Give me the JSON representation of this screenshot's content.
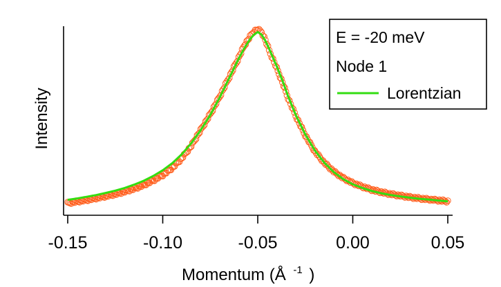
{
  "chart_data": {
    "type": "scatter",
    "xlabel_main": "Momentum (Å",
    "xlabel_sup": "-1",
    "xlabel_close": ")",
    "ylabel": "Intensity",
    "xlim": [
      -0.15,
      0.05
    ],
    "ylim": [
      0.0,
      1.0
    ],
    "x_ticks": [
      -0.15,
      -0.1,
      -0.05,
      0.0,
      0.05
    ],
    "x_tick_labels": [
      "-0.15",
      "-0.10",
      "-0.05",
      "0.00",
      "0.05"
    ],
    "y_ticks_shown": false,
    "grid": false,
    "legend_placement": "top-right",
    "annotations": [
      "E = -20 meV",
      "Node 1"
    ],
    "series": [
      {
        "name": "",
        "kind": "markers",
        "marker": "open-circle",
        "color": "#ff5c1a",
        "x": [
          -0.15,
          -0.145,
          -0.14,
          -0.135,
          -0.13,
          -0.125,
          -0.12,
          -0.115,
          -0.11,
          -0.105,
          -0.1,
          -0.095,
          -0.09,
          -0.085,
          -0.08,
          -0.075,
          -0.07,
          -0.065,
          -0.06,
          -0.057,
          -0.054,
          -0.052,
          -0.05,
          -0.048,
          -0.046,
          -0.044,
          -0.042,
          -0.04,
          -0.037,
          -0.034,
          -0.03,
          -0.025,
          -0.02,
          -0.015,
          -0.01,
          -0.005,
          0.0,
          0.005,
          0.01,
          0.015,
          0.02,
          0.025,
          0.03,
          0.035,
          0.04,
          0.045,
          0.05
        ],
        "y": [
          0.006,
          0.015,
          0.024,
          0.034,
          0.045,
          0.057,
          0.071,
          0.088,
          0.108,
          0.135,
          0.165,
          0.205,
          0.26,
          0.33,
          0.42,
          0.51,
          0.61,
          0.72,
          0.83,
          0.9,
          0.95,
          0.98,
          0.99,
          0.975,
          0.93,
          0.87,
          0.82,
          0.77,
          0.69,
          0.6,
          0.5,
          0.39,
          0.3,
          0.235,
          0.185,
          0.148,
          0.12,
          0.099,
          0.082,
          0.068,
          0.057,
          0.048,
          0.04,
          0.033,
          0.027,
          0.022,
          0.016
        ]
      },
      {
        "name": "Lorentzian",
        "kind": "line",
        "color": "#33dd11",
        "x": [
          -0.15,
          -0.145,
          -0.14,
          -0.135,
          -0.13,
          -0.125,
          -0.12,
          -0.115,
          -0.11,
          -0.105,
          -0.1,
          -0.095,
          -0.09,
          -0.085,
          -0.08,
          -0.075,
          -0.07,
          -0.065,
          -0.06,
          -0.057,
          -0.054,
          -0.052,
          -0.05,
          -0.048,
          -0.046,
          -0.044,
          -0.042,
          -0.04,
          -0.037,
          -0.034,
          -0.03,
          -0.025,
          -0.02,
          -0.015,
          -0.01,
          -0.005,
          0.0,
          0.005,
          0.01,
          0.015,
          0.02,
          0.025,
          0.03,
          0.035,
          0.04,
          0.045,
          0.05
        ],
        "y": [
          0.025,
          0.033,
          0.042,
          0.052,
          0.064,
          0.077,
          0.092,
          0.111,
          0.133,
          0.16,
          0.192,
          0.232,
          0.283,
          0.345,
          0.42,
          0.505,
          0.605,
          0.715,
          0.825,
          0.885,
          0.935,
          0.96,
          0.975,
          0.96,
          0.925,
          0.88,
          0.83,
          0.78,
          0.7,
          0.61,
          0.505,
          0.395,
          0.305,
          0.235,
          0.182,
          0.142,
          0.113,
          0.092,
          0.075,
          0.062,
          0.052,
          0.044,
          0.037,
          0.031,
          0.026,
          0.021,
          0.016
        ]
      }
    ]
  }
}
